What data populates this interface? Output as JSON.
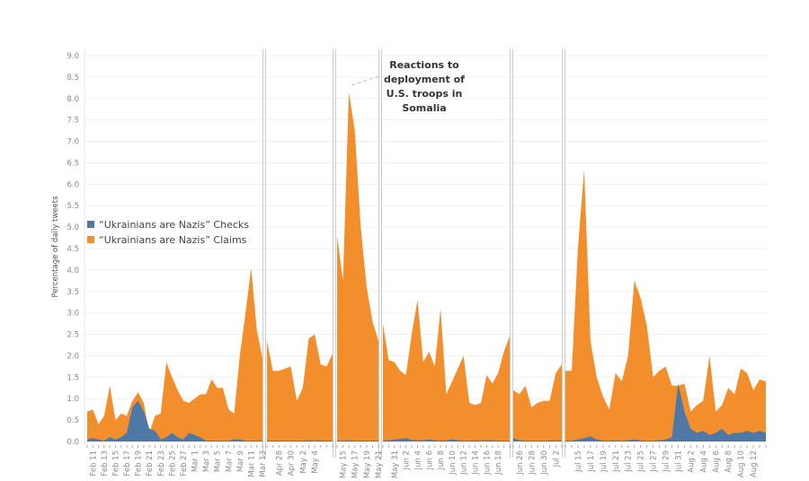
{
  "chart_data": {
    "type": "area",
    "title": "",
    "xlabel": "",
    "ylabel": "Percentage of daily tweets",
    "ylim": [
      0,
      9
    ],
    "yticks": [
      "0.0",
      "0.5",
      "1.0",
      "1.5",
      "2.0",
      "2.5",
      "3.0",
      "3.5",
      "4.0",
      "4.5",
      "5.0",
      "5.5",
      "6.0",
      "6.5",
      "7.0",
      "7.5",
      "8.0",
      "8.5",
      "9.0"
    ],
    "grid": true,
    "legend_position": "left-middle",
    "series": [
      {
        "name": "“Ukrainians are Nazis” Checks",
        "color": "#4e79a7"
      },
      {
        "name": "“Ukrainians are Nazis” Claims",
        "color": "#f28e2b"
      }
    ],
    "annotation": {
      "lines": [
        "Reactions to",
        "deployment of",
        "U.S.  troops in",
        "Somalia"
      ]
    },
    "panels": [
      {
        "tick_offset": 1,
        "ticks": [
          "Feb 11",
          "Feb 13",
          "Feb 15",
          "Feb 17",
          "Feb 19",
          "Feb 21",
          "Feb 23",
          "Feb 25",
          "Feb 27",
          "Mar 1",
          "Mar 3",
          "Mar 5",
          "Mar 7",
          "Mar 9",
          "Mar 11",
          "Mar 13"
        ],
        "claims": [
          0.7,
          0.75,
          0.4,
          0.6,
          1.3,
          0.5,
          0.65,
          0.6,
          0.95,
          1.15,
          0.9,
          0.2,
          0.6,
          0.65,
          1.85,
          1.5,
          1.2,
          0.95,
          0.9,
          1.0,
          1.1,
          1.1,
          1.45,
          1.25,
          1.25,
          0.75,
          0.65,
          2.0,
          3.0,
          4.05,
          2.6,
          1.95
        ],
        "checks": [
          0.05,
          0.08,
          0.05,
          0.02,
          0.1,
          0.05,
          0.1,
          0.2,
          0.8,
          0.95,
          0.7,
          0.3,
          0.25,
          0.05,
          0.1,
          0.2,
          0.1,
          0.05,
          0.2,
          0.15,
          0.1,
          0.02,
          0.02,
          0.02,
          0.02,
          0.02,
          0.05,
          0.05,
          0.02,
          0.02,
          0.02,
          0.02
        ]
      },
      {
        "tick_offset": 2,
        "ticks": [
          "Apr 28",
          "Apr 30",
          "May 2",
          "May 4"
        ],
        "claims": [
          2.35,
          1.65,
          1.65,
          1.7,
          1.75,
          0.95,
          1.25,
          2.4,
          2.5,
          1.8,
          1.75,
          2.05
        ],
        "checks": [
          0.02,
          0.02,
          0.02,
          0.02,
          0.02,
          0.02,
          0.02,
          0.03,
          0.02,
          0.03,
          0.02,
          0.02
        ]
      },
      {
        "tick_offset": 1,
        "ticks": [
          "May 15",
          "May 17",
          "May 19",
          "May 21"
        ],
        "claims": [
          4.8,
          3.75,
          8.15,
          7.25,
          5.0,
          3.6,
          2.8,
          2.35
        ],
        "checks": [
          0.02,
          0.02,
          0.03,
          0.02,
          0.02,
          0.02,
          0.02,
          0.02
        ]
      },
      {
        "tick_offset": 2,
        "ticks": [
          "May 31",
          "Jun 2",
          "Jun 4",
          "Jun 6",
          "Jun 8",
          "Jun 10",
          "Jun 12",
          "Jun 14",
          "Jun 16",
          "Jun 18"
        ],
        "claims": [
          2.75,
          1.9,
          1.85,
          1.65,
          1.55,
          2.5,
          3.3,
          1.85,
          2.1,
          1.75,
          3.1,
          1.1,
          1.4,
          1.7,
          2.0,
          0.9,
          0.85,
          0.9,
          1.55,
          1.35,
          1.6,
          2.1,
          2.45
        ],
        "checks": [
          0.02,
          0.03,
          0.05,
          0.06,
          0.08,
          0.04,
          0.03,
          0.03,
          0.05,
          0.03,
          0.02,
          0.03,
          0.05,
          0.03,
          0.02,
          0.02,
          0.03,
          0.02,
          0.03,
          0.03,
          0.02,
          0.02,
          0.02
        ]
      },
      {
        "tick_offset": 1,
        "ticks": [
          "Jun 26",
          "Jun 28",
          "Jun 30",
          "Jul 2"
        ],
        "claims": [
          1.2,
          1.1,
          1.3,
          0.8,
          0.9,
          0.95,
          0.95,
          1.6,
          1.8
        ],
        "checks": [
          0.08,
          0.03,
          0.02,
          0.02,
          0.02,
          0.02,
          0.02,
          0.03,
          0.02
        ]
      },
      {
        "tick_offset": 2,
        "ticks": [
          "Jul 15",
          "Jul 17",
          "Jul 19",
          "Jul 21",
          "Jul 23",
          "Jul 25",
          "Jul 27",
          "Jul 29",
          "Jul 31",
          "Aug 2",
          "Aug 4",
          "Aug 6",
          "Aug 8",
          "Aug 10",
          "Aug 12"
        ],
        "claims": [
          1.65,
          1.65,
          4.5,
          6.35,
          2.35,
          1.5,
          1.05,
          0.75,
          1.6,
          1.4,
          2.0,
          3.75,
          3.35,
          2.7,
          1.5,
          1.65,
          1.75,
          1.3,
          1.3,
          1.35,
          0.7,
          0.85,
          0.95,
          2.0,
          0.7,
          0.85,
          1.25,
          1.1,
          1.7,
          1.6,
          1.2,
          1.45,
          1.4
        ],
        "checks": [
          0.02,
          0.02,
          0.05,
          0.08,
          0.12,
          0.05,
          0.02,
          0.02,
          0.03,
          0.02,
          0.03,
          0.05,
          0.03,
          0.02,
          0.02,
          0.03,
          0.05,
          0.1,
          1.35,
          0.7,
          0.3,
          0.2,
          0.25,
          0.15,
          0.2,
          0.3,
          0.15,
          0.2,
          0.2,
          0.25,
          0.2,
          0.25,
          0.2
        ]
      }
    ]
  }
}
